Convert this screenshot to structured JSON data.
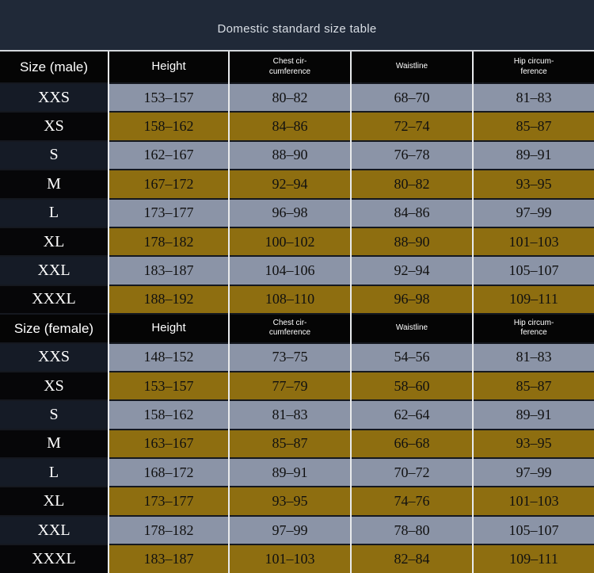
{
  "page": {
    "title": "Domestic standard size table",
    "colors": {
      "title_bar_bg": "#202938",
      "header_row_bg": "#050505",
      "row_blue_gray": "#8b94a7",
      "row_brown_gold": "#8e6e10",
      "size_column_dark_navy": "#151b26",
      "size_column_black": "#060608",
      "separator_light": "#e8eaec",
      "separator_dark": "#15181f",
      "footer_gray": "#9b9ea0"
    }
  },
  "display": {
    "tables": [
      {
        "size_header": "Size (male)",
        "col_headers": [
          "Height",
          "Chest cir-\ncumference",
          "Waistline",
          "Hip circum-\nference"
        ]
      },
      {
        "size_header": "Size (female)",
        "col_headers": [
          "Height",
          "Chest cir-\ncumference",
          "Waistline",
          "Hip circum-\nference"
        ]
      }
    ]
  },
  "chart_data": [
    {
      "type": "table",
      "title": "Size (male)",
      "columns": [
        "Size",
        "Height",
        "Chest circumference",
        "Waistline",
        "Hip circumference"
      ],
      "rows": [
        [
          "XXS",
          "153–157",
          "80–82",
          "68–70",
          "81–83"
        ],
        [
          "XS",
          "158–162",
          "84–86",
          "72–74",
          "85–87"
        ],
        [
          "S",
          "162–167",
          "88–90",
          "76–78",
          "89–91"
        ],
        [
          "M",
          "167–172",
          "92–94",
          "80–82",
          "93–95"
        ],
        [
          "L",
          "173–177",
          "96–98",
          "84–86",
          "97–99"
        ],
        [
          "XL",
          "178–182",
          "100–102",
          "88–90",
          "101–103"
        ],
        [
          "XXL",
          "183–187",
          "104–106",
          "92–94",
          "105–107"
        ],
        [
          "XXXL",
          "188–192",
          "108–110",
          "96–98",
          "109–111"
        ]
      ]
    },
    {
      "type": "table",
      "title": "Size (female)",
      "columns": [
        "Size",
        "Height",
        "Chest circumference",
        "Waistline",
        "Hip circumference"
      ],
      "rows": [
        [
          "XXS",
          "148–152",
          "73–75",
          "54–56",
          "81–83"
        ],
        [
          "XS",
          "153–157",
          "77–79",
          "58–60",
          "85–87"
        ],
        [
          "S",
          "158–162",
          "81–83",
          "62–64",
          "89–91"
        ],
        [
          "M",
          "163–167",
          "85–87",
          "66–68",
          "93–95"
        ],
        [
          "L",
          "168–172",
          "89–91",
          "70–72",
          "97–99"
        ],
        [
          "XL",
          "173–177",
          "93–95",
          "74–76",
          "101–103"
        ],
        [
          "XXL",
          "178–182",
          "97–99",
          "78–80",
          "105–107"
        ],
        [
          "XXXL",
          "183–187",
          "101–103",
          "82–84",
          "109–111"
        ]
      ]
    }
  ]
}
